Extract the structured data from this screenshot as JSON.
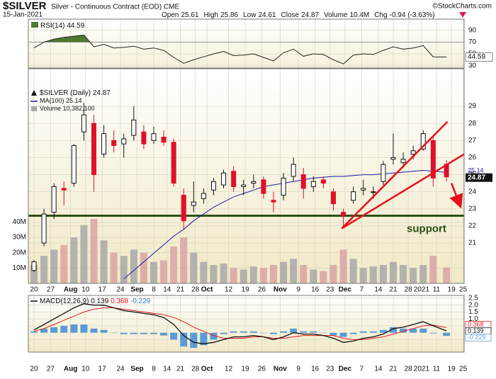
{
  "header": {
    "symbol": "$SILVER",
    "description": "Silver - Continuous Contract (EOD) CME",
    "date": "15-Jan-2021",
    "source": "©StockCharts.com",
    "stats": [
      {
        "label": "Open",
        "value": "25.61"
      },
      {
        "label": "High",
        "value": "25.86"
      },
      {
        "label": "Low",
        "value": "24.61"
      },
      {
        "label": "Close",
        "value": "24.87"
      },
      {
        "label": "Volume",
        "value": "10.4M"
      },
      {
        "label": "Chg",
        "value": "-0.94 (-3.63%)"
      }
    ]
  },
  "chart_data": [
    {
      "type": "line",
      "name": "RSI(14)",
      "color": "#222222",
      "fill_color": "#4d7a2e",
      "overbought": 70,
      "values": [
        60,
        70,
        75,
        78,
        80,
        82,
        62,
        66,
        60,
        61,
        63,
        58,
        60,
        56,
        44,
        34,
        40,
        45,
        50,
        54,
        47,
        48,
        50,
        44,
        38,
        52,
        58,
        46,
        50,
        49,
        40,
        33,
        48,
        50,
        49,
        56,
        62,
        58,
        60,
        64,
        45,
        44.59
      ],
      "ylim": [
        26,
        109
      ],
      "yticks": [
        30,
        50,
        70,
        90
      ],
      "grid": true
    },
    {
      "type": "candlestick",
      "name": "$SILVER (Daily)",
      "up_color": "#111111",
      "down_color": "#e0102a",
      "grid": true,
      "x": [
        0,
        3,
        6,
        9,
        12,
        15,
        18,
        21,
        24,
        27,
        30,
        33,
        36,
        39,
        42,
        45,
        48,
        51,
        54,
        57,
        60,
        63,
        66,
        69,
        72,
        75,
        78,
        81,
        84,
        87,
        90,
        93,
        96,
        99,
        102,
        105,
        108,
        111,
        114,
        117,
        120,
        124
      ],
      "xlim": [
        -1.7,
        129.3
      ],
      "xticks": [
        {
          "value": 0,
          "label": "20"
        },
        {
          "value": 5,
          "label": "27"
        },
        {
          "value": 11,
          "label": "Aug"
        },
        {
          "value": 15.5,
          "label": "10"
        },
        {
          "value": 20.5,
          "label": "17"
        },
        {
          "value": 26,
          "label": "24"
        },
        {
          "value": 31,
          "label": "Sep"
        },
        {
          "value": 36,
          "label": "8"
        },
        {
          "value": 40,
          "label": "14"
        },
        {
          "value": 44,
          "label": "21"
        },
        {
          "value": 48.5,
          "label": "28"
        },
        {
          "value": 52,
          "label": "Oct"
        },
        {
          "value": 58.5,
          "label": "12"
        },
        {
          "value": 63.5,
          "label": "19"
        },
        {
          "value": 68.5,
          "label": "26"
        },
        {
          "value": 74,
          "label": "Nov"
        },
        {
          "value": 79.5,
          "label": "9"
        },
        {
          "value": 84.5,
          "label": "16"
        },
        {
          "value": 89,
          "label": "23"
        },
        {
          "value": 93.5,
          "label": "Dec"
        },
        {
          "value": 98.5,
          "label": "7"
        },
        {
          "value": 103.5,
          "label": "14"
        },
        {
          "value": 108,
          "label": "21"
        },
        {
          "value": 112.5,
          "label": "28"
        },
        {
          "value": 116.5,
          "label": "2021"
        },
        {
          "value": 121,
          "label": "11"
        },
        {
          "value": 125.5,
          "label": "19"
        },
        {
          "value": 129,
          "label": "25"
        }
      ],
      "open": [
        19.4,
        21.0,
        22.8,
        24.2,
        24.5,
        27.5,
        28.0,
        26.2,
        27.0,
        26.8,
        27.3,
        27.5,
        27.0,
        27.2,
        26.9,
        23.8,
        23.2,
        23.6,
        24.1,
        24.4,
        25.2,
        24.3,
        24.5,
        24.7,
        23.5,
        23.8,
        24.9,
        25.0,
        24.3,
        24.7,
        24.0,
        22.8,
        23.5,
        24.1,
        24.0,
        24.6,
        25.9,
        25.7,
        26.2,
        26.5,
        27.0,
        25.61
      ],
      "high": [
        20.0,
        23.0,
        24.5,
        24.6,
        26.8,
        29.2,
        28.5,
        27.9,
        27.6,
        27.4,
        29.0,
        27.9,
        27.8,
        27.6,
        27.1,
        24.2,
        24.6,
        24.2,
        24.8,
        25.3,
        25.5,
        24.7,
        25.0,
        24.9,
        24.0,
        25.1,
        26.0,
        25.4,
        24.9,
        24.9,
        24.2,
        23.0,
        24.3,
        24.7,
        24.3,
        25.8,
        27.4,
        26.3,
        26.7,
        27.6,
        27.3,
        25.86
      ],
      "low": [
        19.3,
        20.8,
        22.4,
        23.2,
        24.3,
        27.0,
        24.0,
        26.0,
        26.3,
        26.0,
        27.0,
        26.5,
        26.8,
        26.7,
        24.3,
        21.8,
        22.8,
        23.3,
        23.8,
        24.2,
        24.0,
        23.8,
        24.2,
        23.6,
        22.8,
        23.5,
        24.6,
        23.6,
        24.0,
        24.2,
        22.9,
        21.9,
        23.3,
        23.8,
        23.6,
        24.4,
        25.6,
        25.4,
        25.9,
        26.4,
        24.3,
        24.61
      ],
      "close": [
        19.9,
        22.7,
        24.3,
        24.1,
        26.7,
        28.5,
        25.0,
        27.4,
        26.7,
        27.1,
        28.2,
        26.8,
        27.4,
        26.9,
        24.5,
        22.3,
        23.4,
        23.9,
        24.6,
        25.1,
        24.3,
        24.4,
        24.6,
        23.9,
        23.4,
        24.8,
        25.6,
        24.2,
        24.6,
        24.5,
        23.3,
        22.6,
        24.0,
        24.2,
        24.0,
        25.6,
        26.0,
        25.9,
        26.4,
        27.4,
        24.8,
        24.87
      ],
      "ylim": [
        18.64,
        31.2
      ],
      "yticks": [
        21,
        22,
        23,
        24,
        25,
        26,
        27,
        28,
        29
      ],
      "ma": {
        "name": "MA(100)",
        "color": "#1c1ca8",
        "values": [
          null,
          null,
          null,
          null,
          null,
          null,
          null,
          null,
          null,
          18.9,
          19.4,
          19.9,
          20.4,
          20.9,
          21.4,
          21.8,
          22.3,
          22.7,
          23.1,
          23.4,
          23.7,
          23.9,
          24.1,
          24.3,
          24.4,
          24.5,
          24.6,
          24.7,
          24.8,
          24.85,
          24.9,
          24.9,
          24.95,
          25.0,
          25.0,
          25.05,
          25.1,
          25.15,
          25.2,
          25.25,
          25.2,
          25.14
        ]
      },
      "volume": {
        "name": "Volume",
        "label": "10,382,100",
        "up_color": "#a8a8a8",
        "down_color": "#d9a3a3",
        "values": [
          12,
          18,
          22,
          25,
          30,
          38,
          42,
          28,
          20,
          18,
          22,
          20,
          14,
          15,
          24,
          30,
          20,
          14,
          12,
          13,
          10,
          9,
          11,
          10,
          12,
          14,
          16,
          12,
          9,
          8,
          12,
          22,
          16,
          10,
          11,
          12,
          14,
          12,
          10,
          12,
          18,
          10.3821
        ],
        "ylim": [
          0,
          140
        ],
        "yticks": [
          {
            "value": 10,
            "label": "10M"
          },
          {
            "value": 20,
            "label": "20M"
          },
          {
            "value": 30,
            "label": "30M"
          },
          {
            "value": 40,
            "label": "40M"
          }
        ]
      },
      "annotations": {
        "support": {
          "value": 22.6,
          "label": "support",
          "color": "#2d5016"
        },
        "trendlines": [
          {
            "color": "#e8101a",
            "points": [
              [
                92.5,
                21.85
              ],
              [
                124.3,
                28.1
              ]
            ]
          },
          {
            "color": "#e8101a",
            "points": [
              [
                92.5,
                21.85
              ],
              [
                129.3,
                26.2
              ]
            ]
          }
        ],
        "arrow": {
          "color": "#e8101a",
          "points": [
            [
              125.5,
              24.5
            ],
            [
              127.7,
              23.4
            ]
          ]
        }
      }
    },
    {
      "type": "macd",
      "name": "MACD(12,26,9)",
      "macd": {
        "color": "#111111",
        "values": [
          0.2,
          0.6,
          1.0,
          1.4,
          1.8,
          2.1,
          2.0,
          2.0,
          1.8,
          1.6,
          1.5,
          1.4,
          1.3,
          1.1,
          0.6,
          -0.2,
          -0.7,
          -0.8,
          -0.7,
          -0.5,
          -0.3,
          -0.3,
          -0.2,
          -0.3,
          -0.5,
          -0.3,
          0.0,
          -0.1,
          -0.1,
          -0.2,
          -0.4,
          -0.7,
          -0.6,
          -0.4,
          -0.3,
          -0.1,
          0.3,
          0.4,
          0.6,
          0.8,
          0.5,
          0.139
        ]
      },
      "signal": {
        "color": "#e31a1c",
        "values": [
          0.1,
          0.3,
          0.6,
          0.9,
          1.2,
          1.5,
          1.7,
          1.8,
          1.8,
          1.7,
          1.6,
          1.5,
          1.4,
          1.3,
          1.1,
          0.8,
          0.4,
          0.1,
          -0.2,
          -0.4,
          -0.4,
          -0.4,
          -0.3,
          -0.3,
          -0.4,
          -0.4,
          -0.3,
          -0.2,
          -0.2,
          -0.2,
          -0.2,
          -0.4,
          -0.5,
          -0.5,
          -0.4,
          -0.3,
          -0.1,
          0.1,
          0.3,
          0.5,
          0.55,
          0.368
        ]
      },
      "histogram": {
        "color": "#5b9bd5",
        "values": [
          0.1,
          0.3,
          0.4,
          0.5,
          0.6,
          0.6,
          0.3,
          0.2,
          0,
          -0.1,
          -0.1,
          -0.1,
          -0.1,
          -0.2,
          -0.5,
          -1.0,
          -1.1,
          -0.9,
          -0.5,
          -0.1,
          0.1,
          0.1,
          0.1,
          0,
          -0.1,
          0.1,
          0.3,
          0.1,
          0.1,
          0,
          -0.2,
          -0.3,
          -0.1,
          0.1,
          0.1,
          0.2,
          0.4,
          0.3,
          0.3,
          0.3,
          -0.05,
          -0.229
        ]
      },
      "ylim": [
        -1.4,
        2.7
      ],
      "yticks": [
        -0.5,
        0.5,
        {
          "value": 1,
          "label": "1.0"
        },
        1.5,
        {
          "value": 2,
          "label": "2.0"
        },
        2.5
      ],
      "grid": true
    }
  ]
}
